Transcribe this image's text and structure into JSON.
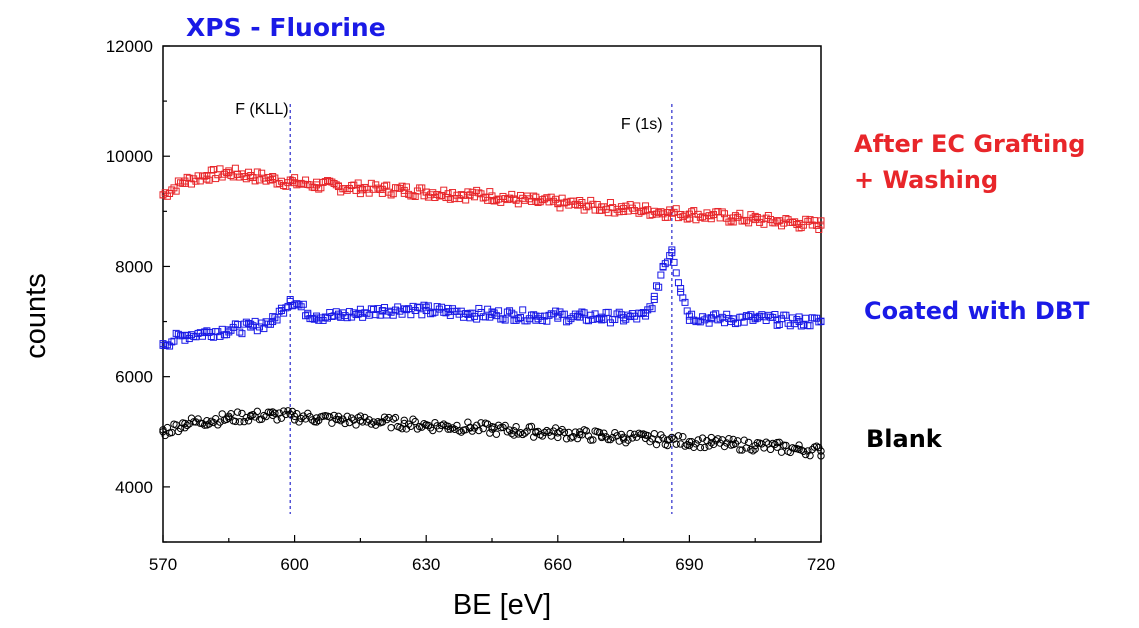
{
  "chart_data": {
    "type": "scatter",
    "title": "XPS - Fluorine",
    "title_color": "#1a1ae6",
    "xlabel": "BE [eV]",
    "ylabel": "counts",
    "xlim": [
      570,
      720
    ],
    "ylim": [
      3000,
      12000
    ],
    "xticks": [
      570,
      600,
      630,
      660,
      690,
      720
    ],
    "yticks": [
      4000,
      6000,
      8000,
      10000,
      12000
    ],
    "grid": false,
    "annotations": [
      {
        "text": "F (KLL)",
        "x": 599,
        "line_color": "#2a2acc"
      },
      {
        "text": "F (1s)",
        "x": 686,
        "line_color": "#2a2acc"
      }
    ],
    "series": [
      {
        "name": "After EC Grafting\n+ Washing",
        "label_lines": [
          "After EC Grafting",
          "+ Washing"
        ],
        "color": "#e8262a",
        "marker": "square",
        "x": [
          570,
          575,
          580,
          585,
          590,
          595,
          600,
          605,
          610,
          615,
          620,
          625,
          630,
          635,
          640,
          645,
          650,
          655,
          660,
          665,
          670,
          675,
          680,
          685,
          690,
          695,
          700,
          705,
          710,
          715,
          720
        ],
        "y": [
          9300,
          9550,
          9650,
          9700,
          9650,
          9580,
          9520,
          9480,
          9450,
          9420,
          9400,
          9380,
          9350,
          9320,
          9300,
          9280,
          9220,
          9180,
          9150,
          9120,
          9080,
          9050,
          9020,
          8980,
          8950,
          8920,
          8880,
          8850,
          8820,
          8780,
          8750
        ]
      },
      {
        "name": "Coated with DBT",
        "label_lines": [
          "Coated with DBT"
        ],
        "color": "#1a1ae6",
        "marker": "square",
        "x": [
          570,
          575,
          580,
          585,
          590,
          595,
          597,
          599,
          601,
          603,
          605,
          610,
          615,
          620,
          625,
          630,
          635,
          640,
          645,
          650,
          655,
          660,
          665,
          670,
          675,
          680,
          682,
          684,
          686,
          688,
          690,
          695,
          700,
          705,
          710,
          715,
          720
        ],
        "y": [
          6600,
          6750,
          6800,
          6850,
          6900,
          7000,
          7200,
          7400,
          7300,
          7150,
          7100,
          7100,
          7150,
          7200,
          7230,
          7200,
          7180,
          7150,
          7130,
          7120,
          7100,
          7100,
          7080,
          7080,
          7070,
          7100,
          7400,
          8000,
          8300,
          7600,
          7100,
          7050,
          7050,
          7050,
          7030,
          7000,
          7000
        ]
      },
      {
        "name": "Blank",
        "label_lines": [
          "Blank"
        ],
        "color": "#000000",
        "marker": "circle",
        "x": [
          570,
          575,
          580,
          585,
          590,
          595,
          600,
          605,
          610,
          615,
          620,
          625,
          630,
          635,
          640,
          645,
          650,
          655,
          660,
          665,
          670,
          675,
          680,
          685,
          690,
          695,
          700,
          705,
          710,
          715,
          720
        ],
        "y": [
          5000,
          5150,
          5200,
          5250,
          5280,
          5300,
          5280,
          5250,
          5220,
          5200,
          5180,
          5150,
          5120,
          5100,
          5080,
          5050,
          5020,
          5000,
          4980,
          4950,
          4920,
          4900,
          4880,
          4850,
          4820,
          4800,
          4770,
          4750,
          4720,
          4680,
          4650
        ]
      }
    ]
  }
}
